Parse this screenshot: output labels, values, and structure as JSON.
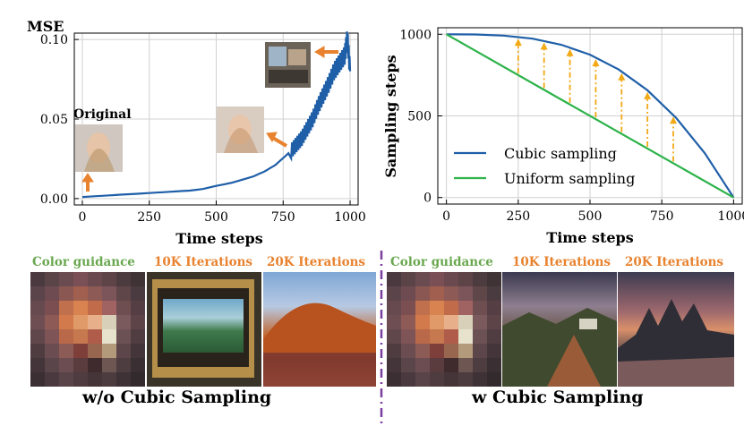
{
  "chart_data": [
    {
      "type": "line",
      "title": "",
      "ylabel": "MSE",
      "xlabel": "Time steps",
      "xlim": [
        -30,
        1030
      ],
      "ylim": [
        -0.004,
        0.104
      ],
      "xticks": [
        0,
        250,
        500,
        750,
        1000
      ],
      "yticks": [
        0.0,
        0.05,
        0.1
      ],
      "xtick_labels": [
        "0",
        "250",
        "500",
        "750",
        "1000"
      ],
      "ytick_labels": [
        "0.00",
        "0.05",
        "0.10"
      ],
      "grid": true,
      "series": [
        {
          "color": "#1f5fa8",
          "x": [
            0,
            50,
            100,
            150,
            200,
            250,
            300,
            350,
            400,
            450,
            500,
            530,
            560,
            600,
            640,
            680,
            700,
            720,
            740,
            760,
            780,
            800,
            820,
            840,
            860,
            880,
            900,
            920,
            940,
            960,
            980,
            990,
            1000
          ],
          "y": [
            0.001,
            0.0015,
            0.002,
            0.0025,
            0.003,
            0.0035,
            0.004,
            0.0045,
            0.005,
            0.006,
            0.008,
            0.009,
            0.01,
            0.012,
            0.014,
            0.017,
            0.019,
            0.021,
            0.024,
            0.027,
            0.03,
            0.034,
            0.038,
            0.044,
            0.05,
            0.058,
            0.065,
            0.072,
            0.08,
            0.085,
            0.09,
            0.101,
            0.08
          ]
        }
      ],
      "annotations": [
        "Original"
      ]
    },
    {
      "type": "line",
      "title": "",
      "ylabel": "Sampling steps",
      "xlabel": "Time steps",
      "xlim": [
        -30,
        1030
      ],
      "ylim": [
        -40,
        1040
      ],
      "xticks": [
        0,
        250,
        500,
        750,
        1000
      ],
      "yticks": [
        0,
        500,
        1000
      ],
      "xtick_labels": [
        "0",
        "250",
        "500",
        "750",
        "1000"
      ],
      "ytick_labels": [
        "0",
        "500",
        "1000"
      ],
      "grid": true,
      "legend": "bottom-left",
      "series": [
        {
          "name": "Cubic sampling",
          "color": "#1f5fa8",
          "x": [
            0,
            100,
            200,
            300,
            400,
            500,
            600,
            700,
            800,
            900,
            1000
          ],
          "y": [
            1000,
            999,
            992,
            973,
            936,
            875,
            784,
            657,
            488,
            271,
            0
          ]
        },
        {
          "name": "Uniform sampling",
          "color": "#2db34a",
          "x": [
            0,
            1000
          ],
          "y": [
            1000,
            0
          ]
        }
      ],
      "arrow_x": [
        250,
        340,
        430,
        520,
        610,
        700,
        790
      ]
    }
  ],
  "gallery": {
    "left": {
      "label_color": "Color guidance",
      "label_10k": "10K Iterations",
      "label_20k": "20K Iterations",
      "caption": "w/o Cubic Sampling"
    },
    "right": {
      "label_color": "Color guidance",
      "label_10k": "10K Iterations",
      "label_20k": "20K Iterations",
      "caption": "w Cubic Sampling"
    }
  },
  "colors": {
    "green_label": "#6aa84f",
    "orange_label": "#e8822e",
    "divider": "#7b3fa0"
  }
}
